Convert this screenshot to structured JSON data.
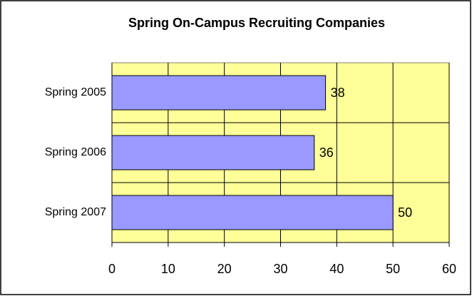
{
  "chart_data": {
    "type": "barh",
    "title": "Spring On-Campus Recruiting Companies",
    "categories": [
      "Spring 2005",
      "Spring 2006",
      "Spring 2007"
    ],
    "values": [
      38,
      36,
      50
    ],
    "color": "#9999ff",
    "plot_background": "#ffff99",
    "xlim": [
      0,
      60
    ],
    "xticks": [
      0,
      10,
      20,
      30,
      40,
      50,
      60
    ],
    "grid": true
  }
}
